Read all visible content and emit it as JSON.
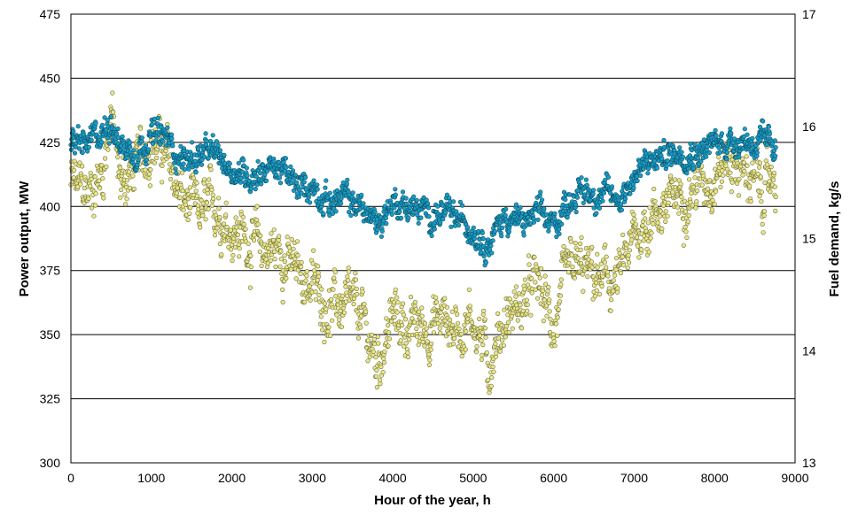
{
  "chart_data": {
    "type": "scatter",
    "title": "",
    "xlabel": "Hour of the year, h",
    "ylabel_left": "Power output, MW",
    "ylabel_right": "Fuel demand, kg/s",
    "xlim": [
      0,
      9000
    ],
    "ylim_left": [
      300,
      475
    ],
    "ylim_right": [
      13,
      17
    ],
    "x_ticks": [
      "0",
      "1000",
      "2000",
      "3000",
      "4000",
      "5000",
      "6000",
      "7000",
      "8000",
      "9000"
    ],
    "y_left_ticks": [
      "300",
      "325",
      "350",
      "375",
      "400",
      "425",
      "450",
      "475"
    ],
    "y_right_ticks": [
      "13",
      "14",
      "15",
      "16",
      "17"
    ],
    "grid": "horizontal",
    "legend": "none",
    "series": [
      {
        "axis": "left",
        "color": "#1a9cc4",
        "edge": "#0b4f66",
        "points_trend": {
          "x": [
            0,
            200,
            400,
            500,
            600,
            800,
            1000,
            1200,
            1400,
            1600,
            1800,
            2000,
            2200,
            2400,
            2600,
            2800,
            3000,
            3200,
            3400,
            3600,
            3800,
            4000,
            4200,
            4400,
            4600,
            4800,
            5000,
            5200,
            5400,
            5600,
            5800,
            6000,
            6200,
            6400,
            6600,
            6800,
            7000,
            7200,
            7400,
            7600,
            7800,
            8000,
            8200,
            8400,
            8600,
            8760
          ],
          "y": [
            424,
            424,
            428,
            435,
            424,
            422,
            428,
            426,
            418,
            420,
            420,
            415,
            412,
            415,
            415,
            407,
            408,
            402,
            403,
            400,
            393,
            402,
            400,
            397,
            397,
            395,
            392,
            386,
            397,
            393,
            397,
            392,
            404,
            406,
            405,
            403,
            412,
            417,
            420,
            422,
            422,
            424,
            426,
            426,
            424,
            425
          ]
        }
      },
      {
        "axis": "right",
        "color": "#e8e58a",
        "edge": "#6e6e3a",
        "points_trend": {
          "x": [
            0,
            200,
            400,
            500,
            600,
            800,
            1000,
            1200,
            1400,
            1600,
            1800,
            2000,
            2200,
            2400,
            2600,
            2800,
            3000,
            3200,
            3400,
            3600,
            3800,
            4000,
            4200,
            4400,
            4600,
            4800,
            5000,
            5200,
            5400,
            5600,
            5800,
            6000,
            6200,
            6400,
            6600,
            6800,
            7000,
            7200,
            7400,
            7600,
            7800,
            8000,
            8200,
            8400,
            8600,
            8760
          ],
          "y": [
            15.5,
            15.4,
            15.6,
            16.2,
            15.5,
            15.6,
            15.9,
            15.7,
            15.3,
            15.2,
            15.3,
            15.1,
            15.0,
            14.9,
            14.9,
            14.7,
            14.6,
            14.4,
            14.4,
            14.3,
            13.9,
            14.3,
            14.2,
            14.2,
            14.3,
            14.2,
            14.3,
            13.9,
            14.3,
            14.4,
            14.6,
            14.2,
            14.7,
            14.7,
            14.6,
            14.6,
            15.0,
            15.2,
            15.3,
            15.4,
            15.5,
            15.6,
            15.7,
            15.6,
            15.4,
            15.6
          ]
        }
      }
    ]
  }
}
